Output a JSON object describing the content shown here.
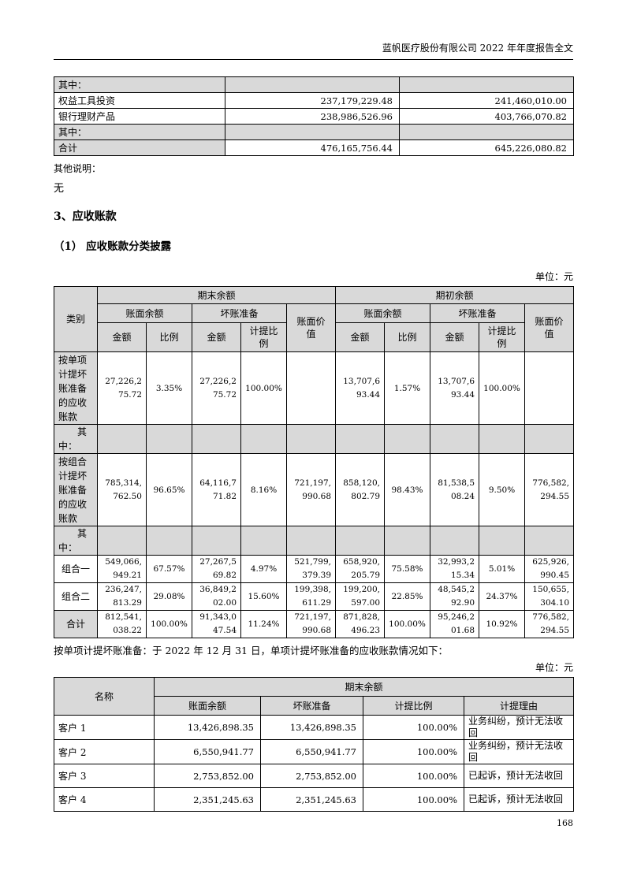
{
  "page": {
    "header_title": "蓝帆医疗股份有限公司 2022 年年度报告全文",
    "page_number": "168"
  },
  "financial_assets_table": {
    "rows": [
      {
        "label": "其中：",
        "v1": "",
        "v2": "",
        "style": "allshade"
      },
      {
        "label": "权益工具投资",
        "v1": "237,179,229.48",
        "v2": "241,460,010.00",
        "style": "plain"
      },
      {
        "label": "银行理财产品",
        "v1": "238,986,526.96",
        "v2": "403,766,070.82",
        "style": "plain"
      },
      {
        "label": "其中：",
        "v1": "",
        "v2": "",
        "style": "allshade"
      },
      {
        "label": "合计",
        "v1": "476,165,756.44",
        "v2": "645,226,080.82",
        "style": "labelshade"
      }
    ]
  },
  "notes": {
    "label": "其他说明：",
    "value": "无"
  },
  "section": {
    "heading": "3、应收账款",
    "subheading": "（1） 应收账款分类披露"
  },
  "receivables_table": {
    "unit": "单位：元",
    "headers": {
      "category": "类别",
      "ending": "期末余额",
      "beginning": "期初余额",
      "book_balance": "账面余额",
      "bad_debt_provision": "坏账准备",
      "carrying_amount": "账面价值",
      "amount": "金额",
      "ratio": "比例",
      "provision_ratio": "计提比例"
    },
    "rows": [
      {
        "label": "按单项计提坏账准备的应收账款",
        "style": "item",
        "cells": [
          "27,226,275.72",
          "3.35%",
          "27,226,275.72",
          "100.00%",
          "",
          "13,707,693.44",
          "1.57%",
          "13,707,693.44",
          "100.00%",
          ""
        ]
      },
      {
        "label": "其中：",
        "style": "subhead",
        "cells": [
          "",
          "",
          "",
          "",
          "",
          "",
          "",
          "",
          "",
          ""
        ]
      },
      {
        "label": "按组合计提坏账准备的应收账款",
        "style": "item",
        "cells": [
          "785,314,762.50",
          "96.65%",
          "64,116,771.82",
          "8.16%",
          "721,197,990.68",
          "858,120,802.79",
          "98.43%",
          "81,538,508.24",
          "9.50%",
          "776,582,294.55"
        ]
      },
      {
        "label": "其中：",
        "style": "subhead",
        "cells": [
          "",
          "",
          "",
          "",
          "",
          "",
          "",
          "",
          "",
          ""
        ]
      },
      {
        "label": "组合一",
        "style": "combo",
        "cells": [
          "549,066,949.21",
          "67.57%",
          "27,267,569.82",
          "4.97%",
          "521,799,379.39",
          "658,920,205.79",
          "75.58%",
          "32,993,215.34",
          "5.01%",
          "625,926,990.45"
        ]
      },
      {
        "label": "组合二",
        "style": "combo",
        "cells": [
          "236,247,813.29",
          "29.08%",
          "36,849,202.00",
          "15.60%",
          "199,398,611.29",
          "199,200,597.00",
          "22.85%",
          "48,545,292.90",
          "24.37%",
          "150,655,304.10"
        ]
      },
      {
        "label": "合计",
        "style": "total",
        "cells": [
          "812,541,038.22",
          "100.00%",
          "91,343,047.54",
          "11.24%",
          "721,197,990.68",
          "871,828,496.23",
          "100.00%",
          "95,246,201.68",
          "10.92%",
          "776,582,294.55"
        ]
      }
    ]
  },
  "individual_table": {
    "intro": "按单项计提坏账准备：于 2022 年 12 月 31 日，单项计提坏账准备的应收账款情况如下：",
    "unit": "单位：元",
    "headers": {
      "name": "名称",
      "ending": "期末余额",
      "book_balance": "账面余额",
      "bad_debt_provision": "坏账准备",
      "provision_ratio": "计提比例",
      "provision_reason": "计提理由"
    },
    "rows": [
      {
        "name": "客户 1",
        "book_balance": "13,426,898.35",
        "bad_debt": "13,426,898.35",
        "ratio": "100.00%",
        "reason": "业务纠纷，预计无法收回"
      },
      {
        "name": "客户 2",
        "book_balance": "6,550,941.77",
        "bad_debt": "6,550,941.77",
        "ratio": "100.00%",
        "reason": "业务纠纷，预计无法收回"
      },
      {
        "name": "客户 3",
        "book_balance": "2,753,852.00",
        "bad_debt": "2,753,852.00",
        "ratio": "100.00%",
        "reason": "已起诉，预计无法收回"
      },
      {
        "name": "客户 4",
        "book_balance": "2,351,245.63",
        "bad_debt": "2,351,245.63",
        "ratio": "100.00%",
        "reason": "已起诉，预计无法收回"
      }
    ]
  },
  "colors": {
    "shade": "#d9d9d9",
    "border": "#000000"
  }
}
